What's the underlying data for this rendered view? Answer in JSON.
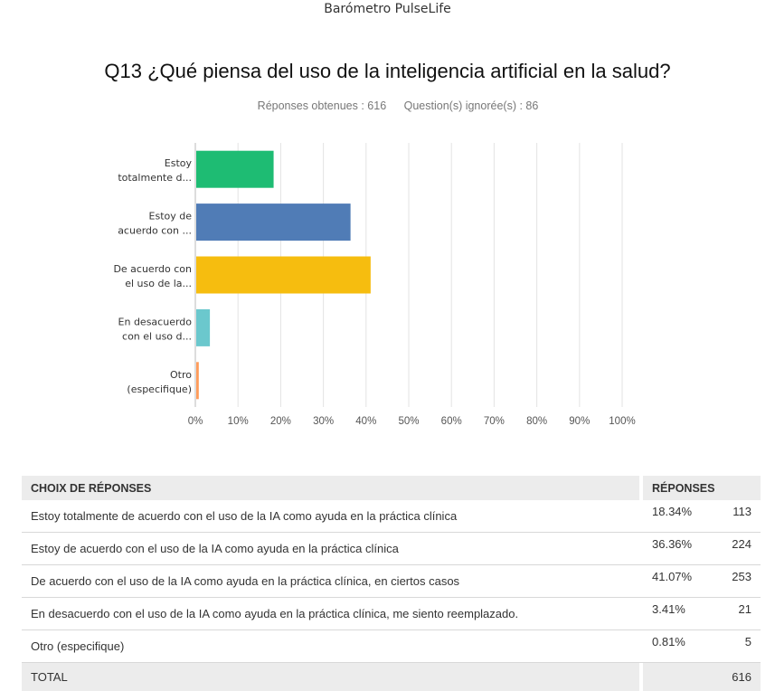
{
  "survey_name": "Barómetro PulseLife",
  "question": "Q13 ¿Qué piensa del uso de la inteligencia artificial en la salud?",
  "stats": {
    "answered": "Réponses obtenues : 616",
    "skipped": "Question(s) ignorée(s) : 86"
  },
  "chart_data": {
    "type": "bar",
    "orientation": "horizontal",
    "categories": [
      "Estoy totalmente de acuerdo con el uso de la IA como ayuda en la práctica clínica",
      "Estoy de acuerdo con el uso de la IA como ayuda en la práctica clínica",
      "De acuerdo con el uso de la IA como ayuda en la práctica clínica, en ciertos casos",
      "En desacuerdo con el uso de la IA como ayuda en la práctica clínica, me siento reemplazado.",
      "Otro (especifique)"
    ],
    "category_labels": [
      [
        "Estoy",
        "totalmente d..."
      ],
      [
        "Estoy de",
        "acuerdo con ..."
      ],
      [
        "De acuerdo con",
        "el uso de la..."
      ],
      [
        "En desacuerdo",
        "con el uso d..."
      ],
      [
        "Otro",
        "(especifique)"
      ]
    ],
    "values": [
      18.34,
      36.36,
      41.07,
      3.41,
      0.81
    ],
    "colors": [
      "#1ebc73",
      "#507cb6",
      "#f6bd0f",
      "#6bc8cd",
      "#ff9c5b"
    ],
    "xlim": [
      0,
      100
    ],
    "xticks": [
      "0%",
      "10%",
      "20%",
      "30%",
      "40%",
      "50%",
      "60%",
      "70%",
      "80%",
      "90%",
      "100%"
    ],
    "grid": true
  },
  "table": {
    "headers": {
      "choice": "CHOIX DE RÉPONSES",
      "responses": "RÉPONSES"
    },
    "rows": [
      {
        "label": "Estoy totalmente de acuerdo con el uso de la IA como ayuda en la práctica clínica",
        "percent": "18.34%",
        "count": "113"
      },
      {
        "label": "Estoy de acuerdo con el uso de la IA como ayuda en la práctica clínica",
        "percent": "36.36%",
        "count": "224"
      },
      {
        "label": "De acuerdo con el uso de la IA como ayuda en la práctica clínica, en ciertos casos",
        "percent": "41.07%",
        "count": "253"
      },
      {
        "label": "En desacuerdo con el uso de la IA como ayuda en la práctica clínica, me siento reemplazado.",
        "percent": "3.41%",
        "count": "21"
      },
      {
        "label": "Otro (especifique)",
        "percent": "0.81%",
        "count": "5"
      }
    ],
    "total": {
      "label": "TOTAL",
      "count": "616"
    }
  }
}
